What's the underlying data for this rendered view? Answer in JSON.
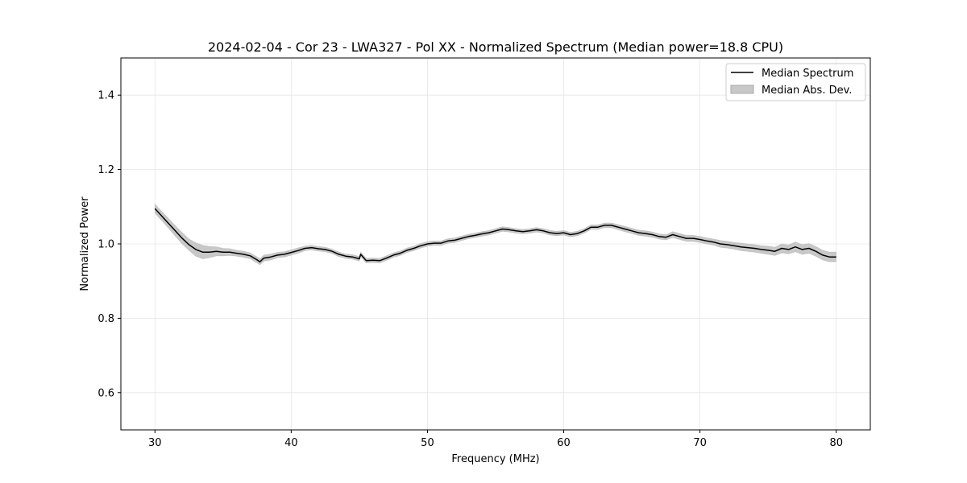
{
  "chart_data": {
    "type": "line",
    "title": "2024-02-04 - Cor 23 - LWA327 - Pol XX - Normalized Spectrum (Median power=18.8 CPU)",
    "xlabel": "Frequency (MHz)",
    "ylabel": "Normalized Power",
    "xlim": [
      27.5,
      82.5
    ],
    "ylim": [
      0.5,
      1.5
    ],
    "xticks": [
      30,
      40,
      50,
      60,
      70,
      80
    ],
    "xtick_labels": [
      "30",
      "40",
      "50",
      "60",
      "70",
      "80"
    ],
    "yticks": [
      0.6,
      0.8,
      1.0,
      1.2,
      1.4
    ],
    "ytick_labels": [
      "0.6",
      "0.8",
      "1.0",
      "1.2",
      "1.4"
    ],
    "grid": true,
    "legend": {
      "location": "top-right",
      "entries": [
        "Median Spectrum",
        "Median Abs. Dev."
      ]
    },
    "series": [
      {
        "name": "Median Spectrum",
        "color": "#000000",
        "band_color": "#c8c8c8",
        "x": [
          30,
          30.5,
          31,
          31.5,
          32,
          32.5,
          33,
          33.5,
          34,
          34.5,
          35,
          35.5,
          36,
          36.5,
          37,
          37.5,
          37.7,
          38,
          38.5,
          39,
          39.5,
          40,
          40.5,
          41,
          41.5,
          42,
          42.5,
          43,
          43.5,
          44,
          44.5,
          45,
          45.1,
          45.5,
          46,
          46.5,
          47,
          47.5,
          48,
          48.5,
          49,
          49.5,
          50,
          50.5,
          51,
          51.5,
          52,
          52.5,
          53,
          53.5,
          54,
          54.5,
          55,
          55.5,
          56,
          56.5,
          57,
          57.5,
          58,
          58.5,
          59,
          59.5,
          60,
          60.5,
          61,
          61.5,
          62,
          62.5,
          63,
          63.5,
          64,
          64.5,
          65,
          65.5,
          66,
          66.5,
          67,
          67.5,
          68,
          68.5,
          69,
          69.5,
          70,
          70.5,
          71,
          71.5,
          72,
          72.5,
          73,
          73.5,
          74,
          74.5,
          75,
          75.5,
          76,
          76.5,
          77,
          77.5,
          78,
          78.5,
          79,
          79.5,
          80
        ],
        "values": [
          1.095,
          1.075,
          1.055,
          1.035,
          1.015,
          0.998,
          0.985,
          0.978,
          0.978,
          0.98,
          0.978,
          0.978,
          0.975,
          0.972,
          0.968,
          0.957,
          0.952,
          0.962,
          0.965,
          0.97,
          0.972,
          0.977,
          0.982,
          0.988,
          0.99,
          0.987,
          0.985,
          0.98,
          0.972,
          0.967,
          0.965,
          0.96,
          0.972,
          0.955,
          0.956,
          0.955,
          0.962,
          0.97,
          0.975,
          0.983,
          0.988,
          0.995,
          1.0,
          1.002,
          1.002,
          1.008,
          1.01,
          1.015,
          1.02,
          1.023,
          1.027,
          1.03,
          1.035,
          1.04,
          1.038,
          1.035,
          1.033,
          1.035,
          1.038,
          1.035,
          1.03,
          1.028,
          1.03,
          1.025,
          1.028,
          1.035,
          1.045,
          1.045,
          1.05,
          1.05,
          1.045,
          1.04,
          1.035,
          1.03,
          1.028,
          1.025,
          1.02,
          1.018,
          1.025,
          1.02,
          1.015,
          1.015,
          1.012,
          1.008,
          1.005,
          1.0,
          0.998,
          0.995,
          0.992,
          0.99,
          0.988,
          0.985,
          0.983,
          0.98,
          0.988,
          0.985,
          0.992,
          0.985,
          0.988,
          0.98,
          0.97,
          0.965,
          0.965
        ],
        "mad": [
          0.012,
          0.012,
          0.013,
          0.014,
          0.015,
          0.015,
          0.018,
          0.018,
          0.015,
          0.012,
          0.01,
          0.009,
          0.008,
          0.008,
          0.008,
          0.008,
          0.008,
          0.008,
          0.008,
          0.007,
          0.007,
          0.007,
          0.007,
          0.006,
          0.006,
          0.006,
          0.006,
          0.006,
          0.006,
          0.006,
          0.006,
          0.006,
          0.006,
          0.006,
          0.006,
          0.006,
          0.006,
          0.006,
          0.006,
          0.006,
          0.006,
          0.006,
          0.006,
          0.006,
          0.006,
          0.006,
          0.006,
          0.006,
          0.006,
          0.006,
          0.006,
          0.006,
          0.006,
          0.006,
          0.006,
          0.006,
          0.006,
          0.006,
          0.006,
          0.006,
          0.006,
          0.006,
          0.006,
          0.006,
          0.006,
          0.006,
          0.006,
          0.006,
          0.006,
          0.006,
          0.007,
          0.007,
          0.007,
          0.007,
          0.007,
          0.007,
          0.007,
          0.007,
          0.008,
          0.008,
          0.008,
          0.008,
          0.008,
          0.008,
          0.008,
          0.009,
          0.009,
          0.009,
          0.01,
          0.01,
          0.01,
          0.01,
          0.011,
          0.011,
          0.012,
          0.012,
          0.013,
          0.013,
          0.013,
          0.013,
          0.013,
          0.013,
          0.013
        ]
      }
    ]
  }
}
